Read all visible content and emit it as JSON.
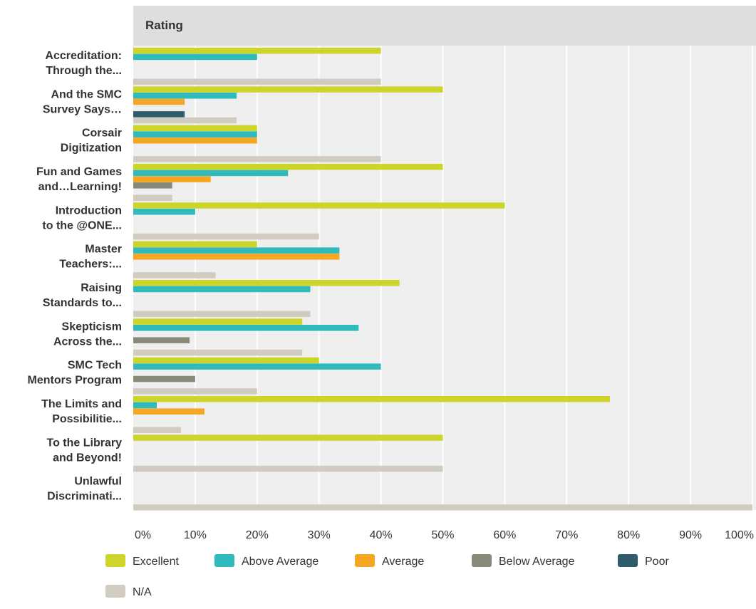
{
  "chart_data": {
    "type": "bar",
    "orientation": "horizontal",
    "title": "Rating",
    "xlim": [
      0,
      100
    ],
    "x_ticks": [
      "0%",
      "10%",
      "20%",
      "30%",
      "40%",
      "50%",
      "60%",
      "70%",
      "80%",
      "90%",
      "100%"
    ],
    "grid": true,
    "legend_position": "bottom",
    "categories": [
      [
        "Accreditation:",
        "Through the..."
      ],
      [
        "And the SMC",
        "Survey Says…"
      ],
      [
        "Corsair",
        "Digitization"
      ],
      [
        "Fun and Games",
        "and…Learning!"
      ],
      [
        "Introduction",
        "to the @ONE..."
      ],
      [
        "Master",
        "Teachers:..."
      ],
      [
        "Raising",
        "Standards to..."
      ],
      [
        "Skepticism",
        "Across the..."
      ],
      [
        "SMC Tech",
        "Mentors Program"
      ],
      [
        "The Limits and",
        "Possibilitie..."
      ],
      [
        "To the Library",
        "and Beyond!"
      ],
      [
        "Unlawful",
        "Discriminati..."
      ]
    ],
    "series": [
      {
        "name": "Excellent",
        "color": "#cdd52a",
        "values": [
          40,
          50,
          20,
          50,
          60,
          20,
          43,
          27.3,
          30,
          77,
          50,
          0
        ]
      },
      {
        "name": "Above Average",
        "color": "#2fbbbc",
        "values": [
          20,
          16.7,
          20,
          25,
          10,
          33.3,
          28.6,
          36.4,
          40,
          3.8,
          0,
          0
        ]
      },
      {
        "name": "Average",
        "color": "#f5a623",
        "values": [
          0,
          8.3,
          20,
          12.5,
          0,
          33.3,
          0,
          0,
          0,
          11.5,
          0,
          0
        ]
      },
      {
        "name": "Below Average",
        "color": "#878a78",
        "values": [
          0,
          0,
          0,
          6.3,
          0,
          0,
          0,
          9.1,
          10,
          0,
          0,
          0
        ]
      },
      {
        "name": "Poor",
        "color": "#2e5c6b",
        "values": [
          0,
          8.3,
          0,
          0,
          0,
          0,
          0,
          0,
          0,
          0,
          0,
          0
        ]
      },
      {
        "name": "N/A",
        "color": "#d0cdc0",
        "values": [
          40,
          16.7,
          40,
          6.3,
          30,
          13.3,
          28.6,
          27.3,
          20,
          7.7,
          50,
          100
        ]
      }
    ]
  }
}
